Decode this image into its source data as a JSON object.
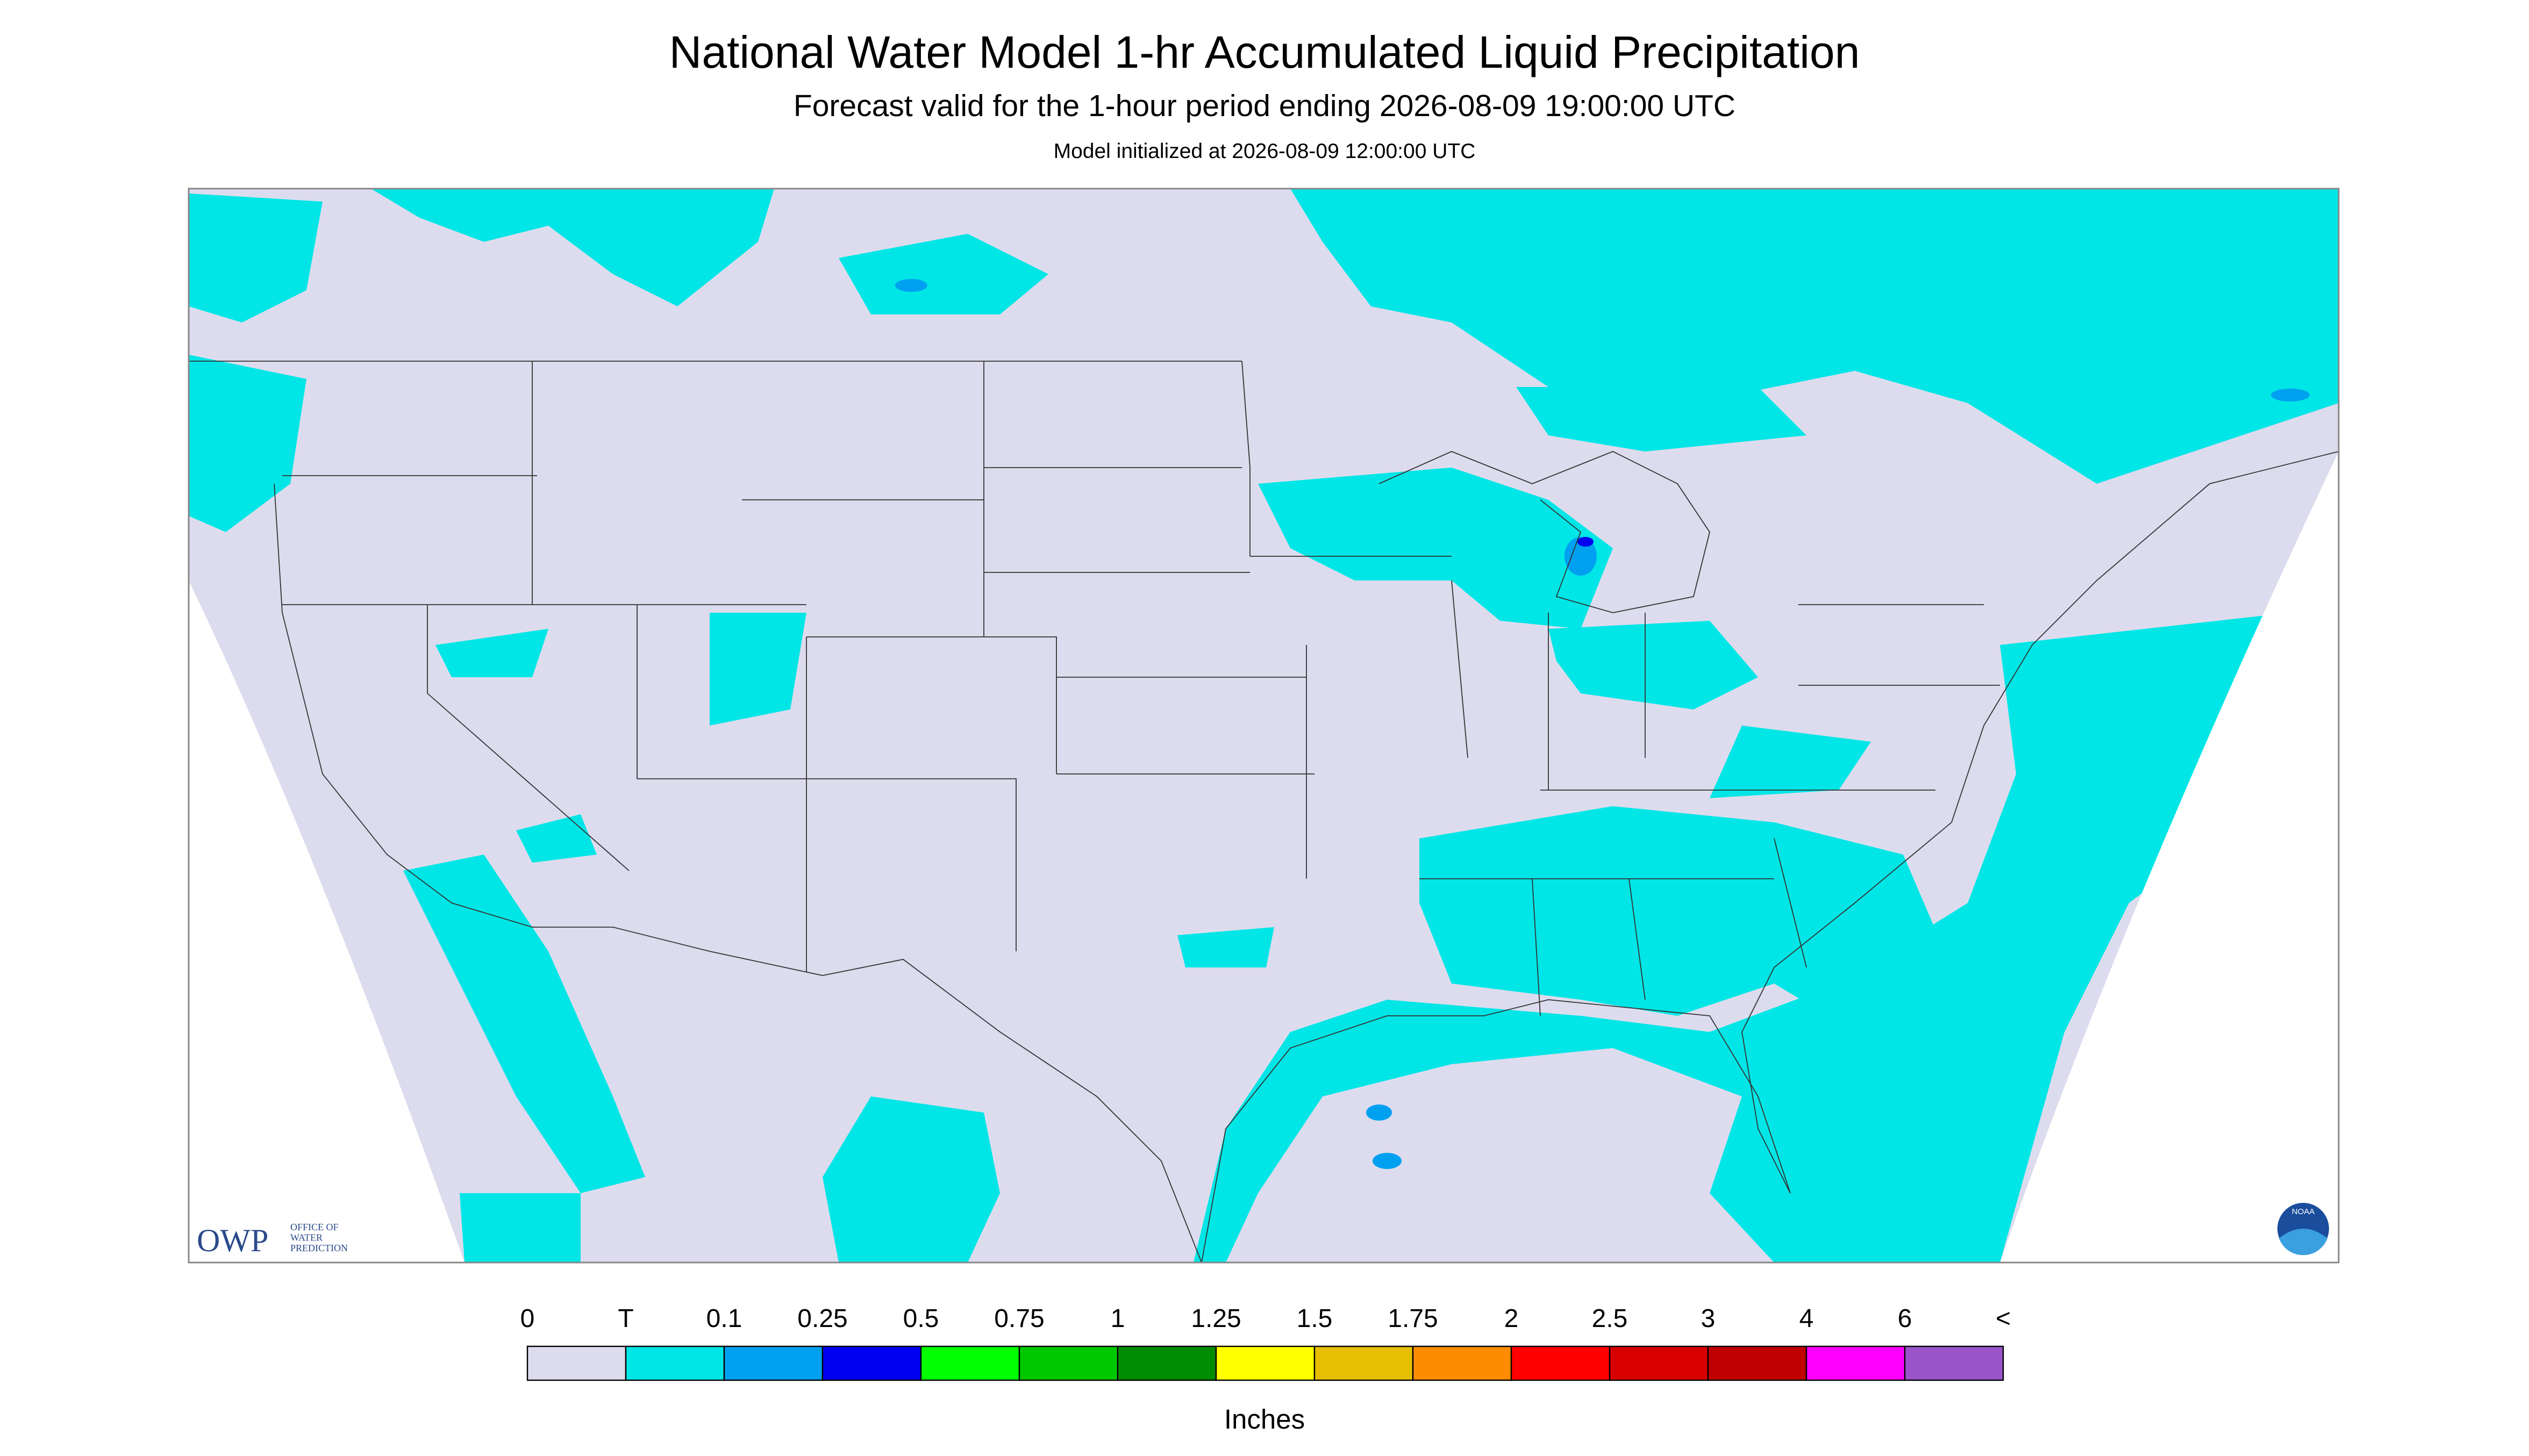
{
  "header": {
    "title": "National Water Model 1-hr Accumulated Liquid Precipitation",
    "subtitle": "Forecast valid for the 1-hour period ending 2026-08-09 19:00:00 UTC",
    "init": "Model initialized at 2026-08-09 12:00:00 UTC"
  },
  "logo": {
    "owp": "OWP",
    "owp_lines": [
      "OFFICE OF",
      "WATER",
      "PREDICTION"
    ],
    "noaa": "NOAA"
  },
  "legend": {
    "labels": [
      "0",
      "T",
      "0.1",
      "0.25",
      "0.5",
      "0.75",
      "1",
      "1.25",
      "1.5",
      "1.75",
      "2",
      "2.5",
      "3",
      "4",
      "6",
      "<"
    ],
    "colors": [
      "#dcdcee",
      "#00e6e6",
      "#00a0f0",
      "#0000f0",
      "#00ff00",
      "#00c800",
      "#008c00",
      "#ffff00",
      "#e6bf00",
      "#ff8c00",
      "#ff0000",
      "#d80000",
      "#c00000",
      "#ff00ff",
      "#9955c9"
    ],
    "unit": "Inches"
  }
}
